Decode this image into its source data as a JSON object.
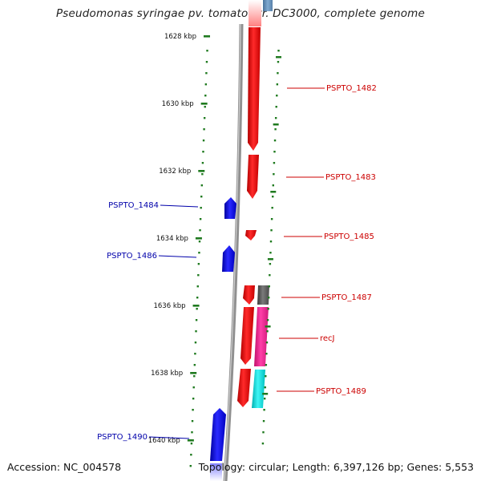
{
  "title": "Pseudomonas syringae pv. tomato str. DC3000, complete genome",
  "footer": {
    "accession": "Accession: NC_004578",
    "summary": "Topology: circular; Length: 6,397,126 bp; Genes: 5,553"
  },
  "colors": {
    "forward_gene": "#ff0000",
    "reverse_gene": "#0000ff",
    "forward_label": "#cc0000",
    "reverse_label": "#0000aa",
    "tick": "#1f7a1f",
    "backbone": "#888888"
  },
  "scale": {
    "ticks": [
      {
        "label": "1628 kbp",
        "kbp": 1628
      },
      {
        "label": "1630 kbp",
        "kbp": 1630
      },
      {
        "label": "1632 kbp",
        "kbp": 1632
      },
      {
        "label": "1634 kbp",
        "kbp": 1634
      },
      {
        "label": "1636 kbp",
        "kbp": 1636
      },
      {
        "label": "1638 kbp",
        "kbp": 1638
      },
      {
        "label": "1640 kbp",
        "kbp": 1640
      }
    ]
  },
  "genes": [
    {
      "label": "PSPTO_1482",
      "strand": "forward"
    },
    {
      "label": "PSPTO_1483",
      "strand": "forward"
    },
    {
      "label": "PSPTO_1484",
      "strand": "reverse"
    },
    {
      "label": "PSPTO_1485",
      "strand": "forward"
    },
    {
      "label": "PSPTO_1486",
      "strand": "reverse"
    },
    {
      "label": "PSPTO_1487",
      "strand": "forward"
    },
    {
      "label": "recJ",
      "strand": "forward"
    },
    {
      "label": "PSPTO_1489",
      "strand": "forward"
    },
    {
      "label": "PSPTO_1490",
      "strand": "reverse"
    }
  ]
}
